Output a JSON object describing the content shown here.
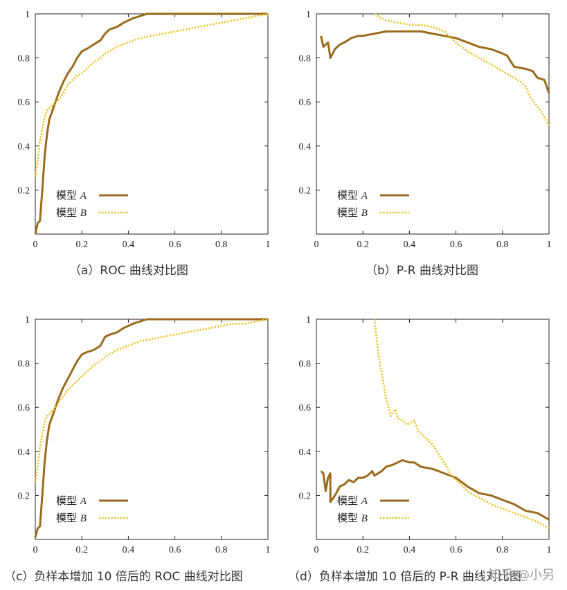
{
  "colors": {
    "model_a": "#9b6a1c",
    "model_b": "#e8c21f",
    "axis": "#222222"
  },
  "watermark": "知乎 @小另",
  "chart_data": [
    {
      "type": "line",
      "panel": "a",
      "caption": "（a）ROC 曲线对比图",
      "xlim": [
        0,
        1
      ],
      "ylim": [
        0,
        1
      ],
      "xticks": [
        "0",
        "0.2",
        "0.4",
        "0.6",
        "0.8",
        "1"
      ],
      "yticks": [
        "0.2",
        "0.4",
        "0.6",
        "0.8",
        "1"
      ],
      "legend": {
        "position": "bottom-left",
        "entries": [
          "模型",
          "模型"
        ],
        "italic": [
          "A",
          "B"
        ]
      },
      "series": [
        {
          "name": "模型 A",
          "style": "solid",
          "points": [
            [
              0,
              0
            ],
            [
              0.01,
              0.05
            ],
            [
              0.02,
              0.06
            ],
            [
              0.03,
              0.2
            ],
            [
              0.04,
              0.35
            ],
            [
              0.05,
              0.45
            ],
            [
              0.06,
              0.52
            ],
            [
              0.08,
              0.58
            ],
            [
              0.1,
              0.64
            ],
            [
              0.12,
              0.69
            ],
            [
              0.14,
              0.73
            ],
            [
              0.16,
              0.76
            ],
            [
              0.18,
              0.8
            ],
            [
              0.2,
              0.83
            ],
            [
              0.22,
              0.84
            ],
            [
              0.25,
              0.86
            ],
            [
              0.28,
              0.88
            ],
            [
              0.3,
              0.91
            ],
            [
              0.32,
              0.93
            ],
            [
              0.35,
              0.94
            ],
            [
              0.38,
              0.96
            ],
            [
              0.42,
              0.98
            ],
            [
              0.45,
              0.99
            ],
            [
              0.48,
              1.0
            ],
            [
              0.6,
              1.0
            ],
            [
              1,
              1.0
            ]
          ]
        },
        {
          "name": "模型 B",
          "style": "dotted",
          "points": [
            [
              0,
              0.26
            ],
            [
              0.01,
              0.33
            ],
            [
              0.02,
              0.42
            ],
            [
              0.04,
              0.53
            ],
            [
              0.05,
              0.56
            ],
            [
              0.06,
              0.57
            ],
            [
              0.08,
              0.59
            ],
            [
              0.1,
              0.61
            ],
            [
              0.12,
              0.64
            ],
            [
              0.14,
              0.68
            ],
            [
              0.16,
              0.7
            ],
            [
              0.18,
              0.72
            ],
            [
              0.2,
              0.73
            ],
            [
              0.22,
              0.75
            ],
            [
              0.25,
              0.78
            ],
            [
              0.28,
              0.8
            ],
            [
              0.3,
              0.82
            ],
            [
              0.35,
              0.85
            ],
            [
              0.4,
              0.87
            ],
            [
              0.45,
              0.89
            ],
            [
              0.5,
              0.9
            ],
            [
              0.55,
              0.91
            ],
            [
              0.6,
              0.92
            ],
            [
              0.65,
              0.93
            ],
            [
              0.7,
              0.94
            ],
            [
              0.75,
              0.95
            ],
            [
              0.8,
              0.96
            ],
            [
              0.85,
              0.97
            ],
            [
              0.9,
              0.98
            ],
            [
              0.95,
              0.99
            ],
            [
              1,
              1.0
            ]
          ]
        }
      ]
    },
    {
      "type": "line",
      "panel": "b",
      "caption": "（b）P-R 曲线对比图",
      "xlim": [
        0,
        1
      ],
      "ylim": [
        0,
        1
      ],
      "xticks": [
        "0",
        "0.2",
        "0.4",
        "0.6",
        "0.8",
        "1"
      ],
      "yticks": [
        "0.2",
        "0.4",
        "0.6",
        "0.8",
        "1"
      ],
      "legend": {
        "position": "bottom-left",
        "entries": [
          "模型",
          "模型"
        ],
        "italic": [
          "A",
          "B"
        ]
      },
      "series": [
        {
          "name": "模型 A",
          "style": "solid",
          "points": [
            [
              0.02,
              0.9
            ],
            [
              0.03,
              0.85
            ],
            [
              0.05,
              0.87
            ],
            [
              0.06,
              0.8
            ],
            [
              0.08,
              0.84
            ],
            [
              0.1,
              0.86
            ],
            [
              0.12,
              0.87
            ],
            [
              0.15,
              0.89
            ],
            [
              0.18,
              0.9
            ],
            [
              0.2,
              0.9
            ],
            [
              0.25,
              0.91
            ],
            [
              0.3,
              0.92
            ],
            [
              0.35,
              0.92
            ],
            [
              0.4,
              0.92
            ],
            [
              0.45,
              0.92
            ],
            [
              0.5,
              0.91
            ],
            [
              0.55,
              0.9
            ],
            [
              0.6,
              0.89
            ],
            [
              0.65,
              0.87
            ],
            [
              0.7,
              0.85
            ],
            [
              0.75,
              0.84
            ],
            [
              0.8,
              0.82
            ],
            [
              0.82,
              0.81
            ],
            [
              0.85,
              0.76
            ],
            [
              0.9,
              0.75
            ],
            [
              0.93,
              0.74
            ],
            [
              0.95,
              0.71
            ],
            [
              0.98,
              0.7
            ],
            [
              1,
              0.64
            ]
          ]
        },
        {
          "name": "模型 B",
          "style": "dotted",
          "points": [
            [
              0.25,
              1.0
            ],
            [
              0.28,
              0.98
            ],
            [
              0.3,
              0.97
            ],
            [
              0.35,
              0.96
            ],
            [
              0.4,
              0.95
            ],
            [
              0.45,
              0.95
            ],
            [
              0.5,
              0.94
            ],
            [
              0.55,
              0.92
            ],
            [
              0.58,
              0.89
            ],
            [
              0.6,
              0.87
            ],
            [
              0.65,
              0.83
            ],
            [
              0.7,
              0.8
            ],
            [
              0.75,
              0.77
            ],
            [
              0.8,
              0.74
            ],
            [
              0.83,
              0.72
            ],
            [
              0.85,
              0.71
            ],
            [
              0.88,
              0.69
            ],
            [
              0.9,
              0.67
            ],
            [
              0.92,
              0.62
            ],
            [
              0.95,
              0.58
            ],
            [
              0.97,
              0.55
            ],
            [
              1,
              0.49
            ]
          ]
        }
      ]
    },
    {
      "type": "line",
      "panel": "c",
      "caption": "（c）负样本增加 10 倍后的 ROC 曲线对比图",
      "xlim": [
        0,
        1
      ],
      "ylim": [
        0,
        1
      ],
      "xticks": [
        "0",
        "0.2",
        "0.4",
        "0.6",
        "0.8",
        "1"
      ],
      "yticks": [
        "0.2",
        "0.4",
        "0.6",
        "0.8",
        "1"
      ],
      "legend": {
        "position": "bottom-left",
        "entries": [
          "模型",
          "模型"
        ],
        "italic": [
          "A",
          "B"
        ]
      },
      "series": [
        {
          "name": "模型 A",
          "style": "solid",
          "points": [
            [
              0,
              0.01
            ],
            [
              0.01,
              0.05
            ],
            [
              0.02,
              0.06
            ],
            [
              0.03,
              0.2
            ],
            [
              0.04,
              0.35
            ],
            [
              0.05,
              0.45
            ],
            [
              0.06,
              0.52
            ],
            [
              0.08,
              0.58
            ],
            [
              0.1,
              0.64
            ],
            [
              0.12,
              0.69
            ],
            [
              0.14,
              0.73
            ],
            [
              0.16,
              0.77
            ],
            [
              0.18,
              0.81
            ],
            [
              0.2,
              0.84
            ],
            [
              0.22,
              0.85
            ],
            [
              0.25,
              0.86
            ],
            [
              0.28,
              0.88
            ],
            [
              0.3,
              0.92
            ],
            [
              0.32,
              0.93
            ],
            [
              0.35,
              0.94
            ],
            [
              0.38,
              0.96
            ],
            [
              0.42,
              0.98
            ],
            [
              0.45,
              0.99
            ],
            [
              0.48,
              1.0
            ],
            [
              0.6,
              1.0
            ],
            [
              1,
              1.0
            ]
          ]
        },
        {
          "name": "模型 B",
          "style": "dotted",
          "points": [
            [
              0,
              0.26
            ],
            [
              0.01,
              0.33
            ],
            [
              0.02,
              0.42
            ],
            [
              0.04,
              0.53
            ],
            [
              0.05,
              0.56
            ],
            [
              0.06,
              0.57
            ],
            [
              0.08,
              0.59
            ],
            [
              0.1,
              0.62
            ],
            [
              0.12,
              0.65
            ],
            [
              0.14,
              0.68
            ],
            [
              0.16,
              0.7
            ],
            [
              0.18,
              0.72
            ],
            [
              0.2,
              0.74
            ],
            [
              0.22,
              0.76
            ],
            [
              0.25,
              0.79
            ],
            [
              0.28,
              0.81
            ],
            [
              0.3,
              0.83
            ],
            [
              0.35,
              0.86
            ],
            [
              0.4,
              0.88
            ],
            [
              0.45,
              0.9
            ],
            [
              0.5,
              0.91
            ],
            [
              0.55,
              0.92
            ],
            [
              0.6,
              0.93
            ],
            [
              0.65,
              0.94
            ],
            [
              0.7,
              0.95
            ],
            [
              0.75,
              0.96
            ],
            [
              0.8,
              0.97
            ],
            [
              0.85,
              0.98
            ],
            [
              0.9,
              0.98
            ],
            [
              0.95,
              0.99
            ],
            [
              1,
              1.0
            ]
          ]
        }
      ]
    },
    {
      "type": "line",
      "panel": "d",
      "caption": "（d）负样本增加 10 倍后的 P-R 曲线对比图",
      "xlim": [
        0,
        1
      ],
      "ylim": [
        0,
        1
      ],
      "xticks": [
        "0",
        "0.2",
        "0.4",
        "0.6",
        "0.8",
        "1"
      ],
      "yticks": [
        "0.2",
        "0.4",
        "0.6",
        "0.8",
        "1"
      ],
      "legend": {
        "position": "bottom-left",
        "entries": [
          "模型",
          "模型"
        ],
        "italic": [
          "A",
          "B"
        ]
      },
      "series": [
        {
          "name": "模型 A",
          "style": "solid",
          "points": [
            [
              0.02,
              0.31
            ],
            [
              0.03,
              0.3
            ],
            [
              0.04,
              0.22
            ],
            [
              0.05,
              0.28
            ],
            [
              0.06,
              0.3
            ],
            [
              0.06,
              0.17
            ],
            [
              0.08,
              0.2
            ],
            [
              0.1,
              0.24
            ],
            [
              0.12,
              0.25
            ],
            [
              0.14,
              0.27
            ],
            [
              0.16,
              0.26
            ],
            [
              0.18,
              0.28
            ],
            [
              0.2,
              0.28
            ],
            [
              0.22,
              0.29
            ],
            [
              0.24,
              0.31
            ],
            [
              0.25,
              0.29
            ],
            [
              0.28,
              0.31
            ],
            [
              0.3,
              0.33
            ],
            [
              0.33,
              0.34
            ],
            [
              0.35,
              0.35
            ],
            [
              0.37,
              0.36
            ],
            [
              0.4,
              0.35
            ],
            [
              0.42,
              0.35
            ],
            [
              0.45,
              0.33
            ],
            [
              0.5,
              0.32
            ],
            [
              0.55,
              0.3
            ],
            [
              0.6,
              0.28
            ],
            [
              0.65,
              0.24
            ],
            [
              0.7,
              0.21
            ],
            [
              0.75,
              0.2
            ],
            [
              0.8,
              0.18
            ],
            [
              0.85,
              0.16
            ],
            [
              0.9,
              0.13
            ],
            [
              0.95,
              0.12
            ],
            [
              1,
              0.09
            ]
          ]
        },
        {
          "name": "模型 B",
          "style": "dotted",
          "points": [
            [
              0.25,
              1.0
            ],
            [
              0.26,
              0.9
            ],
            [
              0.27,
              0.82
            ],
            [
              0.28,
              0.76
            ],
            [
              0.29,
              0.7
            ],
            [
              0.3,
              0.64
            ],
            [
              0.31,
              0.6
            ],
            [
              0.32,
              0.56
            ],
            [
              0.33,
              0.58
            ],
            [
              0.34,
              0.59
            ],
            [
              0.35,
              0.55
            ],
            [
              0.37,
              0.54
            ],
            [
              0.39,
              0.52
            ],
            [
              0.42,
              0.54
            ],
            [
              0.44,
              0.49
            ],
            [
              0.46,
              0.47
            ],
            [
              0.5,
              0.43
            ],
            [
              0.53,
              0.38
            ],
            [
              0.56,
              0.33
            ],
            [
              0.58,
              0.29
            ],
            [
              0.6,
              0.27
            ],
            [
              0.63,
              0.24
            ],
            [
              0.66,
              0.21
            ],
            [
              0.7,
              0.19
            ],
            [
              0.75,
              0.16
            ],
            [
              0.8,
              0.14
            ],
            [
              0.85,
              0.12
            ],
            [
              0.9,
              0.1
            ],
            [
              0.95,
              0.08
            ],
            [
              1,
              0.05
            ]
          ]
        }
      ]
    }
  ]
}
